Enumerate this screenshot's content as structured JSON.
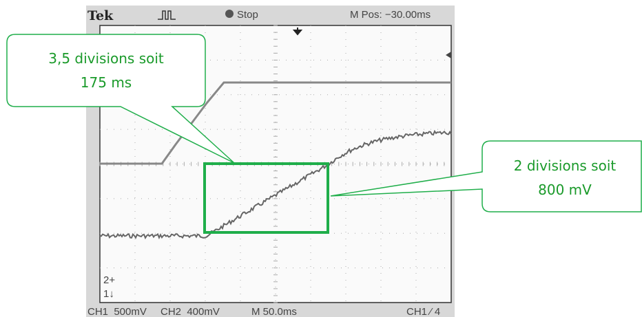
{
  "header": {
    "brand": "Tek",
    "status": "Stop",
    "position": "M Pos: −30.00ms"
  },
  "footer": [
    "CH1  500mV",
    "CH2  400mV",
    "M 50.0ms",
    "CH1 ⁄ 4"
  ],
  "channel_markers": [
    "2+",
    "1↓"
  ],
  "callouts": [
    {
      "lines": [
        "3,5 divisions soit",
        "175 ms"
      ]
    },
    {
      "lines": [
        "2 divisions soit",
        "800 mV"
      ]
    }
  ]
}
